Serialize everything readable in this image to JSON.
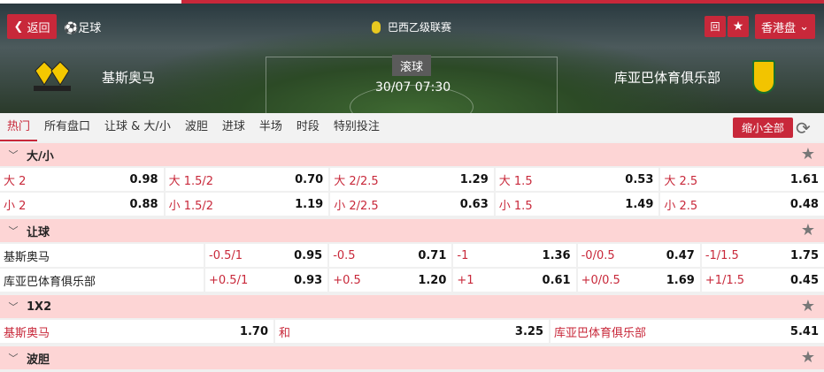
{
  "header": {
    "back": "返回",
    "sport": "足球",
    "league": "巴西乙级联赛",
    "flag_btn": "回",
    "star": "★",
    "odds_format": "香港盘",
    "home": "基斯奥马",
    "away": "库亚巴体育俱乐部",
    "status": "滚球",
    "time": "30/07 07:30"
  },
  "tabs": [
    "热门",
    "所有盘口",
    "让球 & 大/小",
    "波胆",
    "进球",
    "半场",
    "时段",
    "特别投注"
  ],
  "collapse_all": "缩小全部",
  "over_under": {
    "title": "大/小",
    "rows": [
      [
        [
          "大 2",
          "0.98"
        ],
        [
          "大 1.5/2",
          "0.70"
        ],
        [
          "大 2/2.5",
          "1.29"
        ],
        [
          "大 1.5",
          "0.53"
        ],
        [
          "大 2.5",
          "1.61"
        ]
      ],
      [
        [
          "小 2",
          "0.88"
        ],
        [
          "小 1.5/2",
          "1.19"
        ],
        [
          "小 2/2.5",
          "0.63"
        ],
        [
          "小 1.5",
          "1.49"
        ],
        [
          "小 2.5",
          "0.48"
        ]
      ]
    ]
  },
  "handicap": {
    "title": "让球",
    "rows": [
      {
        "team": "基斯奥马",
        "cells": [
          [
            "-0.5/1",
            "0.95"
          ],
          [
            "-0.5",
            "0.71"
          ],
          [
            "-1",
            "1.36"
          ],
          [
            "-0/0.5",
            "0.47"
          ],
          [
            "-1/1.5",
            "1.75"
          ]
        ]
      },
      {
        "team": "库亚巴体育俱乐部",
        "cells": [
          [
            "+0.5/1",
            "0.93"
          ],
          [
            "+0.5",
            "1.20"
          ],
          [
            "+1",
            "0.61"
          ],
          [
            "+0/0.5",
            "1.69"
          ],
          [
            "+1/1.5",
            "0.45"
          ]
        ]
      }
    ]
  },
  "x12": {
    "title": "1X2",
    "cells": [
      [
        "基斯奥马",
        "1.70"
      ],
      [
        "和",
        "3.25"
      ],
      [
        "库亚巴体育俱乐部",
        "5.41"
      ]
    ]
  },
  "correct_score": {
    "title": "波胆"
  }
}
